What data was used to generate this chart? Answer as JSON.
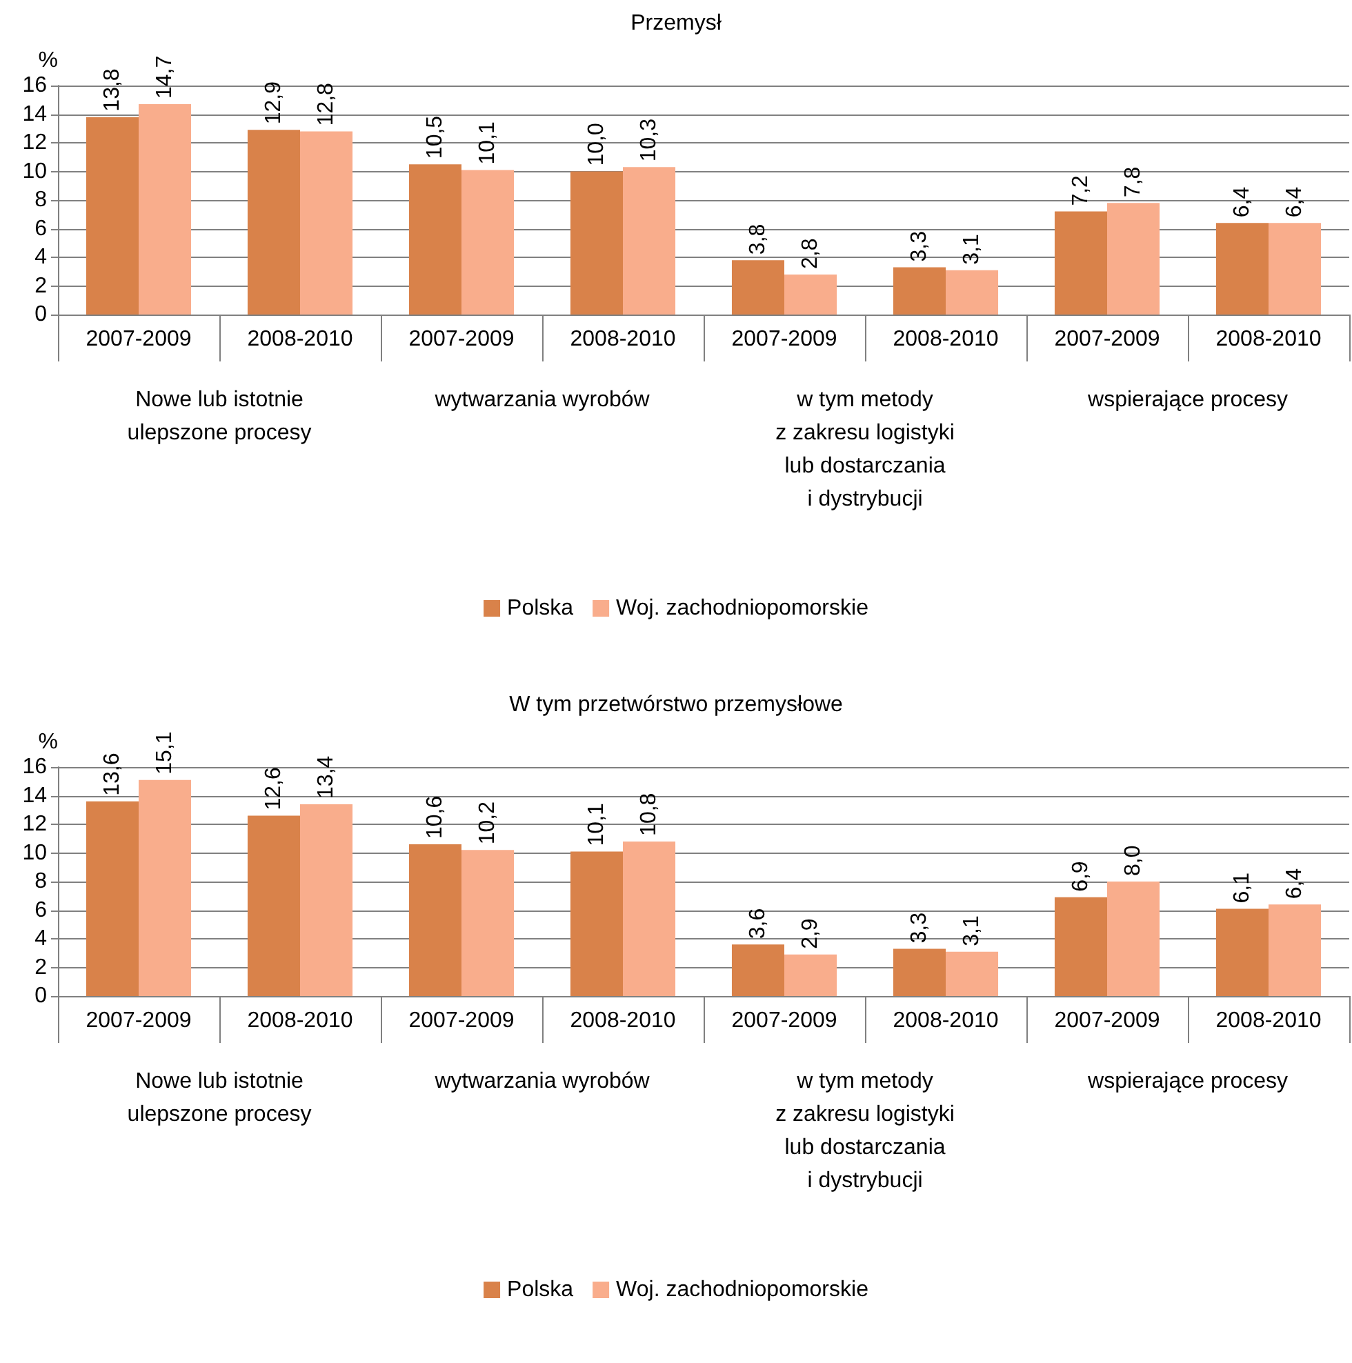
{
  "chart_data": [
    {
      "type": "bar",
      "title": "Przemysł",
      "ylabel": "%",
      "categories": [
        "2007-2009",
        "2008-2010",
        "2007-2009",
        "2008-2010",
        "2007-2009",
        "2008-2010",
        "2007-2009",
        "2008-2010"
      ],
      "series": [
        {
          "name": "Polska",
          "color": "#d9824a",
          "values": [
            13.8,
            12.9,
            10.5,
            10.0,
            3.8,
            3.3,
            7.2,
            6.4
          ],
          "value_labels": [
            "13,8",
            "12,9",
            "10,5",
            "10,0",
            "3,8",
            "3,3",
            "7,2",
            "6,4"
          ]
        },
        {
          "name": "Woj. zachodniopomorskie",
          "color": "#f9ad8c",
          "values": [
            14.7,
            12.8,
            10.1,
            10.3,
            2.8,
            3.1,
            7.8,
            6.4
          ],
          "value_labels": [
            "14,7",
            "12,8",
            "10,1",
            "10,3",
            "2,8",
            "3,1",
            "7,8",
            "6,4"
          ]
        }
      ],
      "annotations": [
        "Nowe lub istotnie\nulepszone procesy",
        "wytwarzania wyrobów",
        "w tym metody\nz zakresu logistyki\nlub dostarczania\ni dystrybucji",
        "wspierające procesy"
      ],
      "ylim": [
        0,
        16
      ],
      "yticks": [
        0,
        2,
        4,
        6,
        8,
        10,
        12,
        14,
        16
      ],
      "grid": "y",
      "legend": "bottom"
    },
    {
      "type": "bar",
      "title": "W tym przetwórstwo przemysłowe",
      "ylabel": "%",
      "categories": [
        "2007-2009",
        "2008-2010",
        "2007-2009",
        "2008-2010",
        "2007-2009",
        "2008-2010",
        "2007-2009",
        "2008-2010"
      ],
      "series": [
        {
          "name": "Polska",
          "color": "#d9824a",
          "values": [
            13.6,
            12.6,
            10.6,
            10.1,
            3.6,
            3.3,
            6.9,
            6.1
          ],
          "value_labels": [
            "13,6",
            "12,6",
            "10,6",
            "10,1",
            "3,6",
            "3,3",
            "6,9",
            "6,1"
          ]
        },
        {
          "name": "Woj. zachodniopomorskie",
          "color": "#f9ad8c",
          "values": [
            15.1,
            13.4,
            10.2,
            10.8,
            2.9,
            3.1,
            8.0,
            6.4
          ],
          "value_labels": [
            "15,1",
            "13,4",
            "10,2",
            "10,8",
            "2,9",
            "3,1",
            "8,0",
            "6,4"
          ]
        }
      ],
      "annotations": [
        "Nowe lub istotnie\nulepszone procesy",
        "wytwarzania wyrobów",
        "w tym metody\nz zakresu logistyki\nlub dostarczania\ni dystrybucji",
        "wspierające procesy"
      ],
      "ylim": [
        0,
        16
      ],
      "yticks": [
        0,
        2,
        4,
        6,
        8,
        10,
        12,
        14,
        16
      ],
      "grid": "y",
      "legend": "bottom"
    }
  ]
}
